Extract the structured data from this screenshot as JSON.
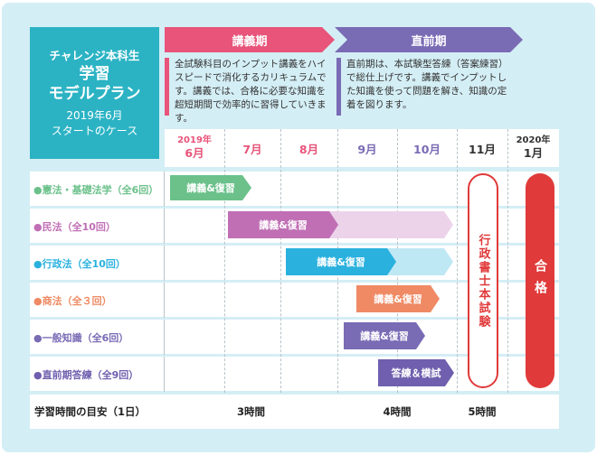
{
  "card": {
    "line1": "チャレンジ本科生",
    "line2": "学習",
    "line3": "モデルプラン",
    "line4": "2019年6月",
    "line5": "スタートのケース"
  },
  "phases": [
    {
      "label": "講義期",
      "color": "#e8547a",
      "description": "全試験科目のインプット講義をハイスピードで消化するカリキュラムです。講義では、合格に必要な知識を超短期間で効率的に習得していきます。"
    },
    {
      "label": "直前期",
      "color": "#7a6bb5",
      "description": "直前期は、本試験型答練（答案練習）で総仕上げです。講義でインプットした知識を使って問題を解き、知識の定着を図ります。"
    }
  ],
  "months": [
    {
      "small": "2019年",
      "big": "6月"
    },
    {
      "small": "",
      "big": "7月"
    },
    {
      "small": "",
      "big": "8月"
    },
    {
      "small": "",
      "big": "9月"
    },
    {
      "small": "",
      "big": "10月"
    },
    {
      "small": "",
      "big": "11月"
    },
    {
      "small": "2020年",
      "big": "1月"
    }
  ],
  "subjects": [
    {
      "label": "●憲法・基礎法学（全6回）",
      "color": "#6cc18b",
      "bar": "講義&復習",
      "light": "#ffffff"
    },
    {
      "label": "●民法（全10回）",
      "color": "#c06fb5",
      "bar": "講義&復習",
      "light": "#ecd3ea"
    },
    {
      "label": "●行政法（全10回）",
      "color": "#2ab1de",
      "bar": "講義&復習",
      "light": "#bfe8f5"
    },
    {
      "label": "●商法（全３回）",
      "color": "#ef8a64",
      "bar": "講義&復習",
      "light": "#ffffff"
    },
    {
      "label": "●一般知識（全6回）",
      "color": "#7a6bb5",
      "bar": "講義&復習",
      "light": "#ffffff"
    },
    {
      "label": "●直前期答練（全9回）",
      "color": "#6f5fae",
      "bar": "答練＆模試",
      "light": "#ffffff"
    }
  ],
  "exam_label": "行政書士本試験",
  "pass_label": "合格",
  "time": {
    "label": "学習時間の目安（1日）",
    "v1": "3時間",
    "v2": "4時間",
    "v3": "5時間"
  }
}
